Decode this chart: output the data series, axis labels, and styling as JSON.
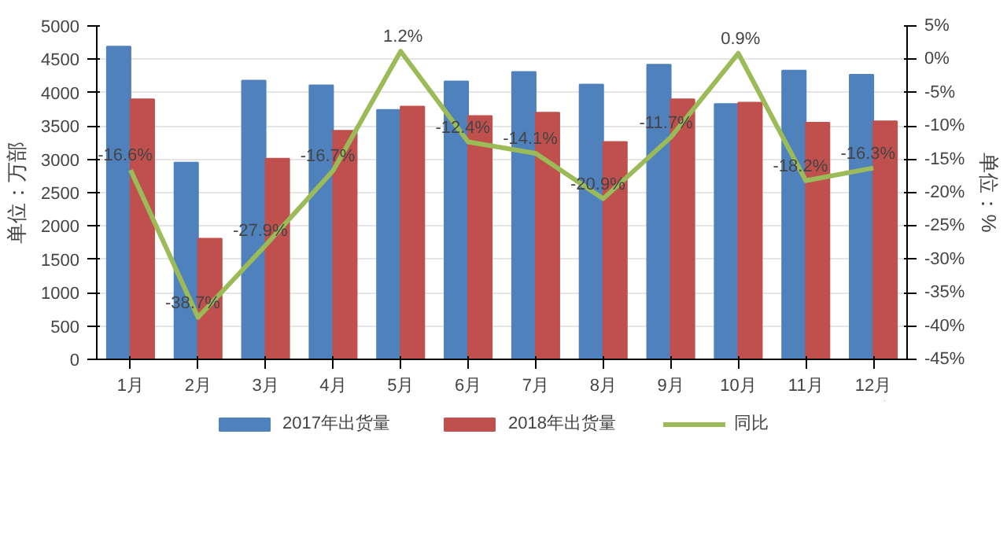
{
  "chart_data": {
    "type": "bar",
    "categories": [
      "1月",
      "2月",
      "3月",
      "4月",
      "5月",
      "6月",
      "7月",
      "8月",
      "9月",
      "10月",
      "11月",
      "12月"
    ],
    "ylabel": "单位：万部",
    "y2label": "单位：%",
    "series": [
      {
        "name": "2017年出货量",
        "color": "#4f81bd",
        "values": [
          4690,
          2950,
          4180,
          4110,
          3740,
          4170,
          4310,
          4120,
          4420,
          3830,
          4330,
          4270
        ]
      },
      {
        "name": "2018年出货量",
        "color": "#c0504d",
        "values": [
          3900,
          1810,
          3010,
          3430,
          3790,
          3650,
          3700,
          3260,
          3900,
          3850,
          3550,
          3570
        ]
      },
      {
        "name": "同比",
        "type": "line",
        "axis": "y2",
        "color": "#9bbb59",
        "values": [
          -16.6,
          -38.7,
          -27.9,
          -16.7,
          1.2,
          -12.4,
          -14.1,
          -20.9,
          -11.7,
          0.9,
          -18.2,
          -16.3
        ],
        "value_labels": [
          "-16.6%",
          "-38.7%",
          "-27.9%",
          "-16.7%",
          "1.2%",
          "-12.4%",
          "-14.1%",
          "-20.9%",
          "-11.7%",
          "0.9%",
          "-18.2%",
          "-16.3%"
        ]
      }
    ],
    "ylim": [
      0,
      5000
    ],
    "yticks": [
      0,
      500,
      1000,
      1500,
      2000,
      2500,
      3000,
      3500,
      4000,
      4500,
      5000
    ],
    "y2lim": [
      -45,
      5
    ],
    "y2ticks": [
      {
        "value": -45,
        "label": "-45%"
      },
      {
        "value": -40,
        "label": "-40%"
      },
      {
        "value": -35,
        "label": "-35%"
      },
      {
        "value": -30,
        "label": "-30%"
      },
      {
        "value": -25,
        "label": "-25%"
      },
      {
        "value": -20,
        "label": "-20%"
      },
      {
        "value": -15,
        "label": "-15%"
      },
      {
        "value": -10,
        "label": "-10%"
      },
      {
        "value": -5,
        "label": "-5%"
      },
      {
        "value": 0,
        "label": "0%"
      },
      {
        "value": 5,
        "label": "5%"
      }
    ],
    "grid": "y",
    "legend": "bottom",
    "line_style": "solid",
    "marker": "none"
  }
}
